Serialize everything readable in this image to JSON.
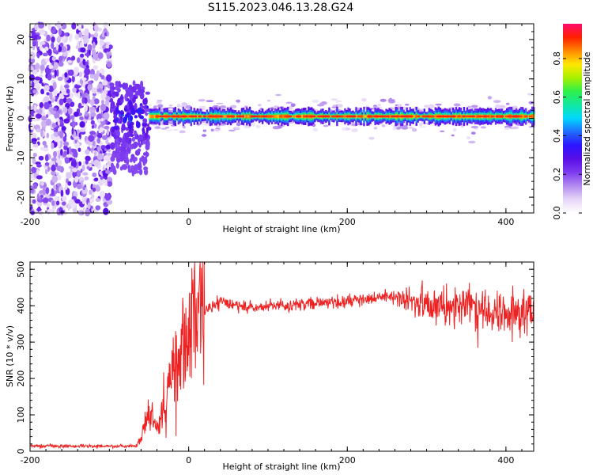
{
  "title": "S115.2023.046.13.28.G24",
  "colors": {
    "snr_line": "#ee2222",
    "colormap": [
      "#ffffff",
      "#e6d6f7",
      "#b48cf0",
      "#7d3cf0",
      "#5a0ee6",
      "#2b14ff",
      "#1f6bff",
      "#00d7ff",
      "#12e8a0",
      "#2ef04a",
      "#a8f000",
      "#ffe600",
      "#ff8800",
      "#ff2000",
      "#ff0a6e"
    ]
  },
  "chart_data": [
    {
      "type": "heatmap",
      "name": "spectrogram",
      "xlabel": "Height of straight line (km)",
      "ylabel": "Frequency (Hz)",
      "xlim": [
        -200,
        435
      ],
      "ylim": [
        -24,
        24
      ],
      "xticks": [
        "-200",
        "0",
        "200",
        "400"
      ],
      "yticks": [
        "20",
        "10",
        "0",
        "-10",
        "-20"
      ],
      "colorbar": {
        "label": "Normalized spectral amplitude",
        "range": [
          0.0,
          0.98
        ],
        "ticks": [
          "0.0",
          "0.2",
          "0.4",
          "0.6",
          "0.8"
        ]
      },
      "description_regions": [
        {
          "x_range": [
            -200,
            -98
          ],
          "freq_range": [
            -24,
            24
          ],
          "amplitude": [
            0.05,
            0.3
          ],
          "pattern": "scattered noise"
        },
        {
          "x_range": [
            -98,
            -50
          ],
          "freq_range": [
            -14,
            9
          ],
          "amplitude": [
            0.2,
            0.45
          ],
          "pattern": "broadening onset"
        },
        {
          "x_range": [
            -50,
            435
          ],
          "freq_center": 0.5,
          "freq_halfwidth": [
            1.0,
            2.5
          ],
          "amplitude_peak": 0.95,
          "pattern": "narrow tone"
        }
      ]
    },
    {
      "type": "line",
      "name": "snr",
      "xlabel": "Height of straight line (km)",
      "ylabel": "SNR (10 * v/v)",
      "xlim": [
        -200,
        435
      ],
      "ylim": [
        0,
        520
      ],
      "xticks": [
        "-200",
        "0",
        "200",
        "400"
      ],
      "yticks": [
        "500",
        "400",
        "300",
        "200",
        "100",
        "0"
      ],
      "x": [
        -200,
        -150,
        -100,
        -65,
        -58,
        -50,
        -40,
        -30,
        -20,
        -10,
        0,
        10,
        20,
        30,
        40,
        60,
        80,
        100,
        150,
        200,
        250,
        300,
        350,
        400,
        435
      ],
      "y": [
        15,
        14,
        14,
        14,
        60,
        120,
        60,
        140,
        220,
        270,
        320,
        360,
        385,
        400,
        410,
        400,
        395,
        400,
        405,
        410,
        425,
        405,
        400,
        380,
        380
      ]
    }
  ]
}
